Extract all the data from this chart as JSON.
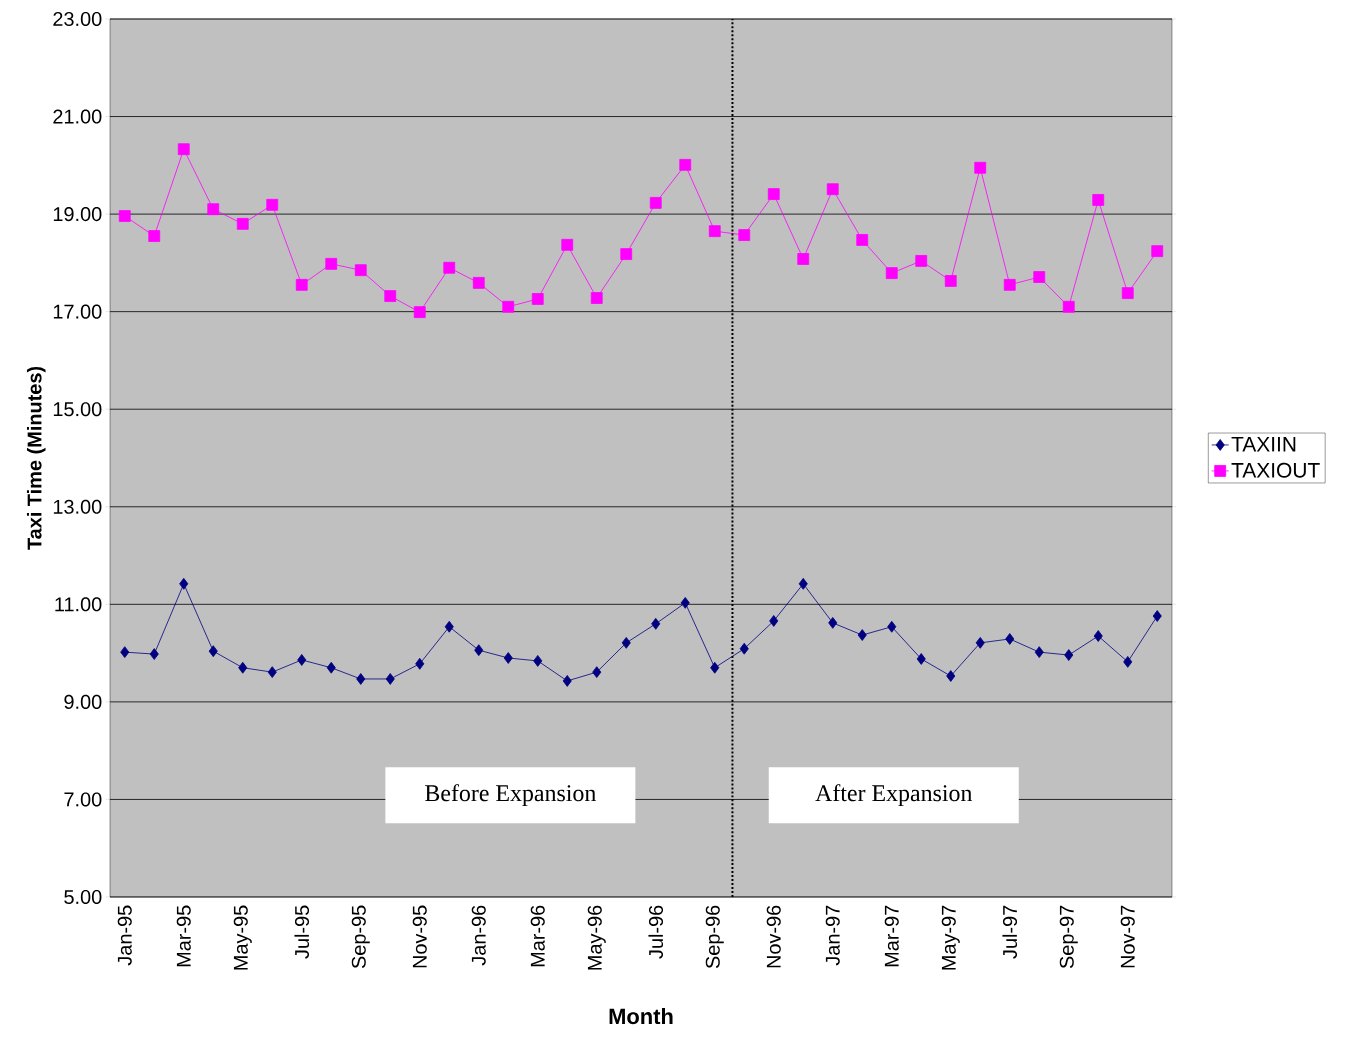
{
  "chart_data": {
    "type": "line",
    "xlabel": "Month",
    "ylabel": "Taxi Time (Minutes)",
    "categories": [
      "Jan-95",
      null,
      "Mar-95",
      null,
      "May-95",
      null,
      "Jul-95",
      null,
      "Sep-95",
      null,
      "Nov-95",
      null,
      "Jan-96",
      null,
      "Mar-96",
      null,
      "May-96",
      null,
      "Jul-96",
      null,
      "Sep-96",
      null,
      "Nov-96",
      null,
      "Jan-97",
      null,
      "Mar-97",
      null,
      "May-97",
      null,
      "Jul-97",
      null,
      "Sep-97",
      null,
      "Nov-97",
      null
    ],
    "series": [
      {
        "name": "TAXIIN",
        "color": "#000080",
        "marker": "diamond",
        "values": [
          10.02,
          9.98,
          11.42,
          10.04,
          9.7,
          9.61,
          9.86,
          9.7,
          9.47,
          9.47,
          9.78,
          10.54,
          10.06,
          9.9,
          9.84,
          9.43,
          9.61,
          10.21,
          10.6,
          11.03,
          9.7,
          10.09,
          10.66,
          11.42,
          10.62,
          10.37,
          10.54,
          9.88,
          9.53,
          10.21,
          10.29,
          10.02,
          9.96,
          10.35,
          9.82,
          10.76
        ]
      },
      {
        "name": "TAXIOUT",
        "color": "#ff00ff",
        "marker": "square",
        "values": [
          18.96,
          18.55,
          20.33,
          19.1,
          18.8,
          19.19,
          17.55,
          17.98,
          17.85,
          17.32,
          16.99,
          17.9,
          17.59,
          17.1,
          17.26,
          18.37,
          17.28,
          18.18,
          19.23,
          20.01,
          18.65,
          18.57,
          19.41,
          18.08,
          19.51,
          18.47,
          17.79,
          18.04,
          17.63,
          19.95,
          17.55,
          17.71,
          17.1,
          19.29,
          17.38,
          18.24
        ]
      }
    ],
    "ylim": [
      5,
      23
    ],
    "yticks": [
      {
        "value": 5,
        "label": "5.00"
      },
      {
        "value": 7,
        "label": "7.00"
      },
      {
        "value": 9,
        "label": "9.00"
      },
      {
        "value": 11,
        "label": "11.00"
      },
      {
        "value": 13,
        "label": "13.00"
      },
      {
        "value": 15,
        "label": "15.00"
      },
      {
        "value": 17,
        "label": "17.00"
      },
      {
        "value": 19,
        "label": "19.00"
      },
      {
        "value": 21,
        "label": "21.00"
      },
      {
        "value": 23,
        "label": "23.00"
      }
    ],
    "grid": "y",
    "legend": "right",
    "annotations": [
      "Before Expansion",
      "After Expansion"
    ]
  }
}
